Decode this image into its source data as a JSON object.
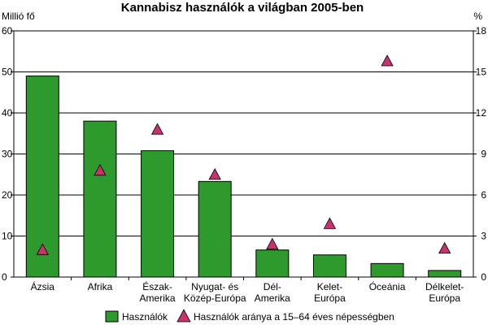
{
  "chart_data": {
    "type": "bar",
    "title": "Kannabisz használók a világban 2005-ben",
    "y_left_label": "Millió fő",
    "y_right_label": "%",
    "ylim_left": [
      0,
      60
    ],
    "ylim_right": [
      0,
      18
    ],
    "yticks_left": [
      0,
      10,
      20,
      30,
      40,
      50,
      60
    ],
    "yticks_right": [
      0,
      3,
      6,
      9,
      12,
      15,
      18
    ],
    "grid": true,
    "legend_position": "bottom",
    "categories": [
      [
        "Ázsia"
      ],
      [
        "Afrika"
      ],
      [
        "Észak-",
        "Amerika"
      ],
      [
        "Nyugat- és",
        "Közép-Európa"
      ],
      [
        "Dél-",
        "Amerika"
      ],
      [
        "Kelet-",
        "Európa"
      ],
      [
        "Óceánia"
      ],
      [
        "Délkelet-",
        "Európa"
      ]
    ],
    "series": [
      {
        "name": "Használók",
        "type": "bar",
        "axis": "left",
        "color": "#2e9a2e",
        "values": [
          49,
          38,
          30.8,
          23.3,
          6.6,
          5.4,
          3.3,
          1.6
        ]
      },
      {
        "name": "Használók aránya a 15–64 éves népességben",
        "type": "marker",
        "axis": "right",
        "color": "#c8326e",
        "values": [
          2.0,
          7.8,
          10.8,
          7.5,
          2.4,
          3.9,
          15.8,
          2.1
        ]
      }
    ]
  }
}
